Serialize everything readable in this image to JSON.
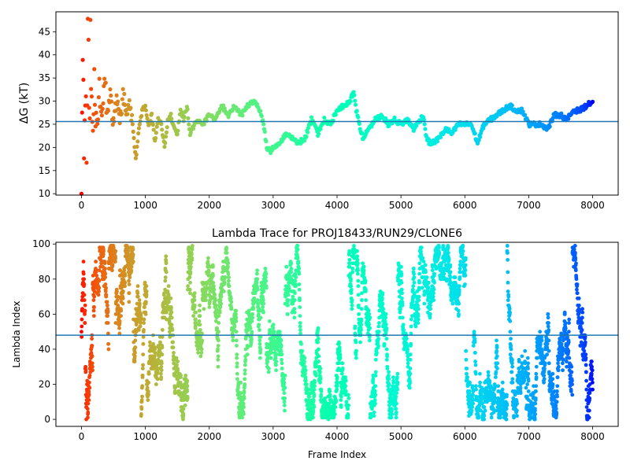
{
  "chart_data": [
    {
      "type": "scatter",
      "title": "",
      "xlabel": "",
      "ylabel": "ΔG (kT)",
      "xlim": [
        -400,
        8400
      ],
      "ylim": [
        9.7,
        49.3
      ],
      "xticks": [
        "0",
        "1000",
        "2000",
        "3000",
        "4000",
        "5000",
        "6000",
        "7000",
        "8000"
      ],
      "yticks": [
        "10",
        "15",
        "20",
        "25",
        "30",
        "35",
        "40",
        "45"
      ],
      "hline": 25.6,
      "hline_color": "#1f77b4",
      "colormap": "rainbow (color runs from red at frame 0 to violet at frame 8000)",
      "anchors": [
        [
          0,
          10
        ],
        [
          20,
          40
        ],
        [
          40,
          14
        ],
        [
          60,
          36
        ],
        [
          80,
          22
        ],
        [
          100,
          48
        ],
        [
          120,
          26
        ],
        [
          140,
          40
        ],
        [
          170,
          24
        ],
        [
          200,
          34
        ],
        [
          240,
          22
        ],
        [
          280,
          33
        ],
        [
          320,
          25
        ],
        [
          360,
          36
        ],
        [
          400,
          27
        ],
        [
          450,
          31
        ],
        [
          500,
          25
        ],
        [
          550,
          30
        ],
        [
          600,
          26
        ],
        [
          650,
          31
        ],
        [
          700,
          28
        ],
        [
          750,
          29
        ],
        [
          800,
          25
        ],
        [
          850,
          17.5
        ],
        [
          900,
          24
        ],
        [
          950,
          28
        ],
        [
          1000,
          29
        ],
        [
          1050,
          25
        ],
        [
          1100,
          27
        ],
        [
          1150,
          21
        ],
        [
          1200,
          26
        ],
        [
          1250,
          25
        ],
        [
          1300,
          20
        ],
        [
          1350,
          26
        ],
        [
          1400,
          27
        ],
        [
          1450,
          24
        ],
        [
          1500,
          23
        ],
        [
          1550,
          28
        ],
        [
          1600,
          26
        ],
        [
          1650,
          29
        ],
        [
          1700,
          23
        ],
        [
          1800,
          26
        ],
        [
          1900,
          25
        ],
        [
          2000,
          27
        ],
        [
          2100,
          26
        ],
        [
          2200,
          29
        ],
        [
          2300,
          27
        ],
        [
          2400,
          29
        ],
        [
          2500,
          27
        ],
        [
          2600,
          29
        ],
        [
          2700,
          30
        ],
        [
          2800,
          28
        ],
        [
          2850,
          25
        ],
        [
          2900,
          20
        ],
        [
          2950,
          19
        ],
        [
          3000,
          20
        ],
        [
          3100,
          21
        ],
        [
          3200,
          23
        ],
        [
          3300,
          22
        ],
        [
          3400,
          21
        ],
        [
          3500,
          22
        ],
        [
          3600,
          26
        ],
        [
          3700,
          23
        ],
        [
          3800,
          26
        ],
        [
          3900,
          25
        ],
        [
          4000,
          28
        ],
        [
          4100,
          29
        ],
        [
          4200,
          30
        ],
        [
          4260,
          32
        ],
        [
          4300,
          28
        ],
        [
          4400,
          22
        ],
        [
          4500,
          24
        ],
        [
          4600,
          26
        ],
        [
          4700,
          27
        ],
        [
          4800,
          25
        ],
        [
          4900,
          26
        ],
        [
          5000,
          25
        ],
        [
          5100,
          26
        ],
        [
          5200,
          24
        ],
        [
          5300,
          26
        ],
        [
          5350,
          27
        ],
        [
          5400,
          22
        ],
        [
          5450,
          21
        ],
        [
          5500,
          21
        ],
        [
          5600,
          22
        ],
        [
          5700,
          24
        ],
        [
          5800,
          23
        ],
        [
          5900,
          25
        ],
        [
          6000,
          25
        ],
        [
          6100,
          25
        ],
        [
          6200,
          21
        ],
        [
          6300,
          25
        ],
        [
          6400,
          26
        ],
        [
          6500,
          27
        ],
        [
          6600,
          28
        ],
        [
          6700,
          29
        ],
        [
          6800,
          28
        ],
        [
          6900,
          28
        ],
        [
          7000,
          25
        ],
        [
          7100,
          25
        ],
        [
          7200,
          25
        ],
        [
          7300,
          24
        ],
        [
          7400,
          27
        ],
        [
          7500,
          27
        ],
        [
          7600,
          26
        ],
        [
          7700,
          28
        ],
        [
          7800,
          28
        ],
        [
          7900,
          29
        ],
        [
          7990,
          29.8
        ]
      ]
    },
    {
      "type": "scatter",
      "title": "Lambda Trace for PROJ18433/RUN29/CLONE6",
      "xlabel": "Frame Index",
      "ylabel": "Lambda Index",
      "xlim": [
        -400,
        8400
      ],
      "ylim": [
        -4,
        101
      ],
      "xticks": [
        "0",
        "1000",
        "2000",
        "3000",
        "4000",
        "5000",
        "6000",
        "7000",
        "8000"
      ],
      "yticks": [
        "0",
        "20",
        "40",
        "60",
        "80",
        "100"
      ],
      "hline": 48,
      "hline_color": "#1f77b4",
      "colormap": "rainbow (color runs from red at frame 0 to violet at frame 8000)",
      "lambda_range": [
        0,
        99
      ],
      "frame_range": [
        0,
        8000
      ]
    }
  ]
}
